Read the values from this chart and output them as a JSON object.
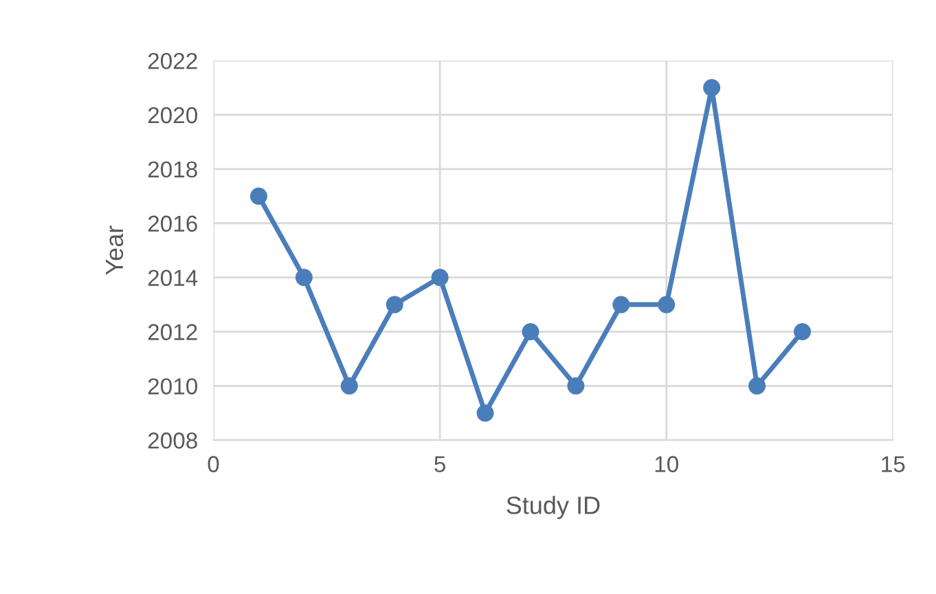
{
  "chart_data": {
    "type": "line",
    "xlabel": "Study ID",
    "ylabel": "Year",
    "x": [
      1,
      2,
      3,
      4,
      5,
      6,
      7,
      8,
      9,
      10,
      11,
      12,
      13
    ],
    "series": [
      {
        "color": "#4a7ebb",
        "values": [
          2017,
          2014,
          2010,
          2013,
          2014,
          2009,
          2012,
          2010,
          2013,
          2013,
          2021,
          2010,
          2012
        ]
      }
    ],
    "xlim": [
      0,
      15
    ],
    "xticks": [
      0,
      5,
      10,
      15
    ],
    "ylim": [
      2008,
      2022
    ],
    "yticks": [
      2008,
      2010,
      2012,
      2014,
      2016,
      2018,
      2020,
      2022
    ],
    "grid": true,
    "marker": "circle",
    "line_style": "solid",
    "legend": false
  }
}
